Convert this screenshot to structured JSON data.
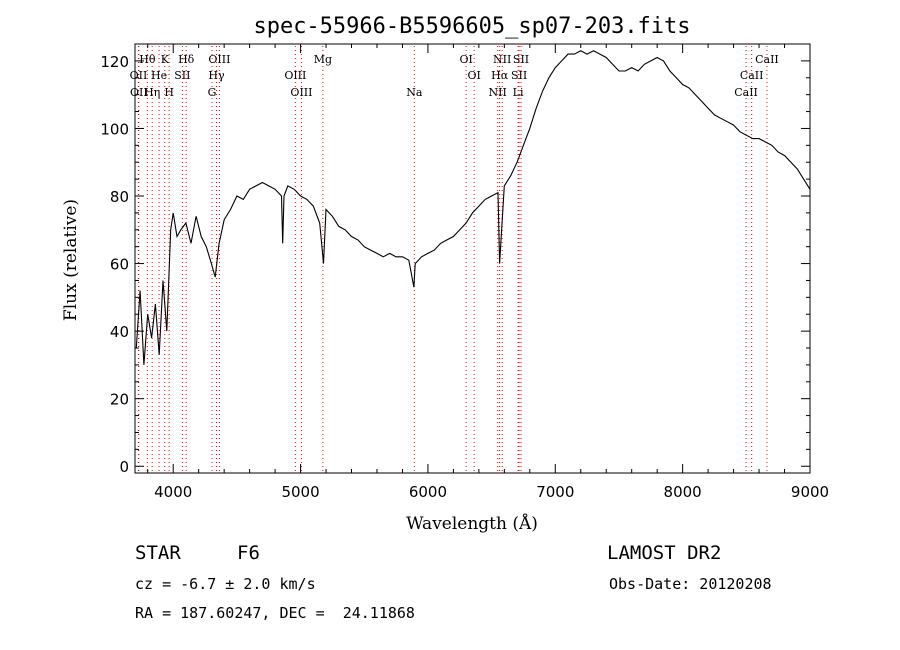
{
  "chart_data": {
    "type": "line",
    "title": "spec-55966-B5596605_sp07-203.fits",
    "xlabel": "Wavelength (Å)",
    "ylabel": "Flux (relative)",
    "xlim": [
      3700,
      9000
    ],
    "ylim": [
      -2,
      125
    ],
    "xticks": [
      4000,
      5000,
      6000,
      7000,
      8000,
      9000
    ],
    "yticks": [
      0,
      20,
      40,
      60,
      80,
      100,
      120
    ],
    "grid": false,
    "line_color": "#000000",
    "marker_color": "#ff0000",
    "series": [
      {
        "x": [
          3710,
          3740,
          3770,
          3800,
          3830,
          3860,
          3890,
          3920,
          3950,
          3980,
          4000,
          4030,
          4060,
          4100,
          4140,
          4180,
          4220,
          4260,
          4300,
          4330,
          4360,
          4400,
          4450,
          4500,
          4550,
          4600,
          4650,
          4700,
          4750,
          4800,
          4850,
          4860,
          4870,
          4900,
          4950,
          5000,
          5050,
          5100,
          5150,
          5180,
          5200,
          5250,
          5300,
          5350,
          5400,
          5450,
          5500,
          5550,
          5600,
          5650,
          5700,
          5750,
          5800,
          5850,
          5890,
          5900,
          5950,
          6000,
          6050,
          6100,
          6150,
          6200,
          6250,
          6300,
          6350,
          6400,
          6450,
          6500,
          6550,
          6563,
          6600,
          6650,
          6700,
          6750,
          6800,
          6850,
          6900,
          6950,
          7000,
          7050,
          7100,
          7150,
          7200,
          7250,
          7300,
          7350,
          7400,
          7450,
          7500,
          7550,
          7600,
          7650,
          7700,
          7750,
          7800,
          7850,
          7900,
          7950,
          8000,
          8050,
          8100,
          8150,
          8200,
          8250,
          8300,
          8350,
          8400,
          8450,
          8500,
          8550,
          8600,
          8650,
          8700,
          8750,
          8800,
          8850,
          8900,
          8950,
          9000
        ],
        "values": [
          35,
          52,
          30,
          45,
          38,
          48,
          33,
          55,
          40,
          70,
          75,
          68,
          70,
          72,
          66,
          74,
          68,
          65,
          60,
          56,
          66,
          73,
          76,
          80,
          79,
          82,
          83,
          84,
          83,
          82,
          80,
          66,
          80,
          83,
          82,
          80,
          79,
          77,
          72,
          60,
          76,
          74,
          71,
          70,
          68,
          67,
          65,
          64,
          63,
          62,
          63,
          62,
          62,
          61,
          53,
          60,
          62,
          63,
          64,
          66,
          67,
          68,
          70,
          72,
          75,
          77,
          79,
          80,
          81,
          60,
          83,
          86,
          90,
          95,
          100,
          106,
          111,
          115,
          118,
          120,
          122,
          122,
          123,
          122,
          123,
          122,
          121,
          119,
          117,
          117,
          118,
          117,
          119,
          120,
          121,
          120,
          117,
          115,
          113,
          112,
          110,
          108,
          106,
          104,
          103,
          102,
          101,
          99,
          98,
          97,
          97,
          96,
          95,
          93,
          92,
          90,
          88,
          85,
          82
        ]
      }
    ],
    "line_markers": [
      {
        "label": "Hθ",
        "x": 3797,
        "row": 0
      },
      {
        "label": "K",
        "x": 3934,
        "row": 0
      },
      {
        "label": "Hδ",
        "x": 4102,
        "row": 0
      },
      {
        "label": "OIII",
        "x": 4363,
        "row": 0
      },
      {
        "label": "Mg",
        "x": 5175,
        "row": 0
      },
      {
        "label": "OI",
        "x": 6300,
        "row": 0
      },
      {
        "label": "NII",
        "x": 6583,
        "row": 0
      },
      {
        "label": "SII",
        "x": 6731,
        "row": 0
      },
      {
        "label": "CaII",
        "x": 8662,
        "row": 0
      },
      {
        "label": "OII",
        "x": 3727,
        "row": 1
      },
      {
        "label": "He",
        "x": 3889,
        "row": 1
      },
      {
        "label": "SII",
        "x": 4072,
        "row": 1
      },
      {
        "label": "Hγ",
        "x": 4340,
        "row": 1
      },
      {
        "label": "OIII",
        "x": 4959,
        "row": 1
      },
      {
        "label": "OI",
        "x": 6363,
        "row": 1
      },
      {
        "label": "Hα",
        "x": 6563,
        "row": 1
      },
      {
        "label": "SII",
        "x": 6716,
        "row": 1
      },
      {
        "label": "CaII",
        "x": 8542,
        "row": 1
      },
      {
        "label": "OII",
        "x": 3730,
        "row": 2
      },
      {
        "label": "Hη",
        "x": 3835,
        "row": 2
      },
      {
        "label": "H",
        "x": 3968,
        "row": 2
      },
      {
        "label": "G",
        "x": 4305,
        "row": 2
      },
      {
        "label": "OIII",
        "x": 5007,
        "row": 2
      },
      {
        "label": "Na",
        "x": 5893,
        "row": 2
      },
      {
        "label": "NII",
        "x": 6548,
        "row": 2
      },
      {
        "label": "Li",
        "x": 6708,
        "row": 2
      },
      {
        "label": "CaII",
        "x": 8498,
        "row": 2
      }
    ]
  },
  "info": {
    "object_class": "STAR",
    "subclass": "F6",
    "survey": "LAMOST DR2",
    "cz": "cz = -6.7 ± 2.0 km/s",
    "obs_date": "Obs-Date: 20120208",
    "coords": "RA = 187.60247, DEC =  24.11868"
  }
}
